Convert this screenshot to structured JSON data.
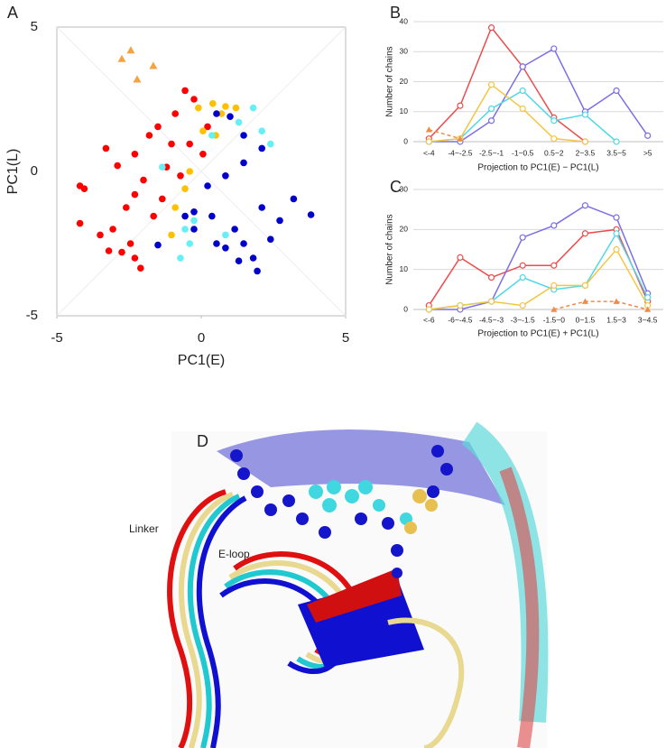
{
  "chart_data": [
    {
      "type": "scatter",
      "panel": "A",
      "xlabel": "PC1(E)",
      "ylabel": "PC1(L)",
      "xlim": [
        -5,
        5
      ],
      "ylim": [
        -5,
        5
      ],
      "xticks": [
        -5,
        0,
        5
      ],
      "yticks": [
        -5,
        0,
        5
      ],
      "grid": false,
      "series": [
        {
          "color": "#ff0000",
          "marker": "circle",
          "x": [
            -4.2,
            -4.05,
            -4.2,
            -3.3,
            -2.9,
            -2.3,
            -1.8,
            -1.5,
            -0.56,
            -0.25,
            -0.9,
            -1.2,
            -2.0,
            -2.3,
            -2.6,
            -3.06,
            -3.2,
            -2.75,
            -2.3,
            -2.1,
            -2.45,
            -1.65,
            -1.35,
            -0.72,
            -1.03,
            -0.4,
            0.06,
            0.22,
            -3.5
          ],
          "values": [
            -0.5,
            -0.6,
            -1.8,
            0.8,
            0.2,
            0.6,
            1.25,
            1.55,
            2.8,
            2.5,
            2.0,
            0.15,
            -0.3,
            -0.8,
            -1.25,
            -2.0,
            -2.75,
            -2.8,
            -3.0,
            -3.35,
            -2.5,
            -1.55,
            -0.95,
            -0.15,
            0.95,
            0.95,
            0.6,
            1.55,
            -2.2
          ]
        },
        {
          "color": "#ffc000",
          "marker": "circle",
          "x": [
            -0.1,
            0.4,
            0.7,
            0.06,
            0.5,
            -0.4,
            -0.56,
            -0.9,
            -1.03,
            0.84,
            1.2
          ],
          "values": [
            2.2,
            2.35,
            2.0,
            1.4,
            1.25,
            0,
            -0.6,
            -1.25,
            -2.2,
            2.25,
            2.2
          ]
        },
        {
          "color": "#66f0f5",
          "marker": "circle",
          "x": [
            1.8,
            2.1,
            2.4,
            1.3,
            -1.35,
            -0.56,
            -0.4,
            -0.72,
            -0.25,
            0.84,
            0.37
          ],
          "values": [
            2.2,
            1.4,
            0.95,
            1.7,
            0.15,
            -2.0,
            -2.5,
            -3.0,
            -1.7,
            -2.2,
            1.25
          ]
        },
        {
          "color": "#0000cc",
          "marker": "circle",
          "x": [
            0.53,
            1.0,
            1.47,
            2.1,
            1.47,
            0.84,
            0.22,
            -0.25,
            0.37,
            1.16,
            1.47,
            1.8,
            1.94,
            1.3,
            0.84,
            0.53,
            -0.56,
            -1.5,
            2.1,
            2.72,
            3.2,
            3.8,
            -0.25,
            2.4
          ],
          "values": [
            2.0,
            1.9,
            1.25,
            0.8,
            0.3,
            -0.15,
            -0.5,
            -1.4,
            -1.55,
            -2.0,
            -2.5,
            -3.0,
            -3.45,
            -3.1,
            -2.65,
            -2.5,
            -1.55,
            -2.55,
            -1.25,
            -1.7,
            -0.95,
            -1.5,
            -2.0,
            -2.35
          ]
        },
        {
          "color": "#f4a340",
          "marker": "triangle",
          "x": [
            -2.44,
            -2.75,
            -1.66,
            -2.22
          ],
          "values": [
            4.2,
            3.9,
            3.66,
            3.19
          ]
        }
      ]
    },
    {
      "type": "line",
      "panel": "B",
      "xlabel": "Projection to PC1(E) − PC1(L)",
      "ylabel": "Number of chains",
      "categories": [
        "<-4",
        "-4~-2.5",
        "-2.5~-1",
        "-1~0.5",
        "0.5~2",
        "2~3.5",
        "3.5~5",
        ">5"
      ],
      "ylim": [
        0,
        40
      ],
      "yticks": [
        0,
        10,
        20,
        30,
        40
      ],
      "grid": true,
      "series": [
        {
          "color": "#f04a4a",
          "marker": "circle",
          "values": [
            1,
            12,
            38,
            25,
            8,
            0,
            null,
            null
          ]
        },
        {
          "color": "#7b6fe6",
          "marker": "circle",
          "values": [
            0,
            0,
            7,
            25,
            31,
            10,
            17,
            2
          ]
        },
        {
          "color": "#4fd8e8",
          "marker": "circle",
          "values": [
            0,
            1,
            11,
            17,
            7,
            9,
            0,
            null
          ]
        },
        {
          "color": "#f5c542",
          "marker": "circle",
          "values": [
            0,
            1,
            19,
            11,
            1,
            0,
            null,
            null
          ]
        },
        {
          "color": "#f08a4a",
          "marker": "triangle",
          "dash": true,
          "values": [
            4,
            1,
            null,
            null,
            null,
            null,
            null,
            null
          ]
        }
      ]
    },
    {
      "type": "line",
      "panel": "C",
      "xlabel": "Projection to PC1(E) + PC1(L)",
      "ylabel": "Number of chains",
      "categories": [
        "<-6",
        "-6~-4.5",
        "-4.5~-3",
        "-3~-1.5",
        "-1.5~0",
        "0~1.5",
        "1.5~3",
        "3~4.5"
      ],
      "ylim": [
        0,
        30
      ],
      "yticks": [
        0,
        10,
        20,
        30
      ],
      "grid": true,
      "series": [
        {
          "color": "#f04a4a",
          "marker": "circle",
          "values": [
            1,
            13,
            8,
            11,
            11,
            19,
            20,
            2
          ]
        },
        {
          "color": "#7b6fe6",
          "marker": "circle",
          "values": [
            0,
            0,
            2,
            18,
            21,
            26,
            23,
            4
          ]
        },
        {
          "color": "#4fd8e8",
          "marker": "circle",
          "values": [
            0,
            1,
            2,
            8,
            5,
            6,
            19,
            3
          ]
        },
        {
          "color": "#f5c542",
          "marker": "circle",
          "values": [
            0,
            1,
            2,
            1,
            6,
            6,
            15,
            1
          ]
        },
        {
          "color": "#f08a4a",
          "marker": "triangle",
          "dash": true,
          "values": [
            null,
            null,
            null,
            null,
            0,
            2,
            2,
            0
          ]
        }
      ]
    }
  ],
  "structure_panel": {
    "panel": "D",
    "labels": [
      "Linker",
      "E-loop"
    ]
  }
}
